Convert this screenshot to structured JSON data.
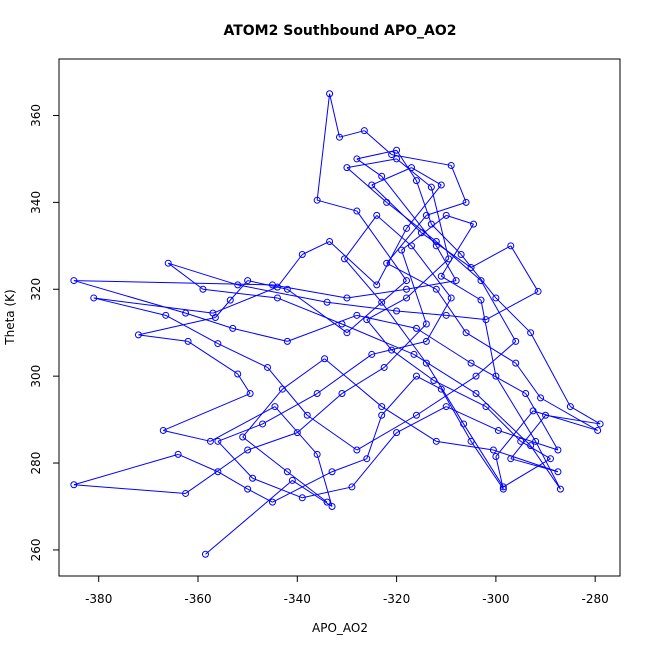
{
  "chart_data": {
    "type": "line",
    "title": "ATOM2 Southbound APO_AO2",
    "xlabel": "APO_AO2",
    "ylabel": "Theta (K)",
    "xlim": [
      -388,
      -275
    ],
    "ylim": [
      254,
      373
    ],
    "x_ticks": [
      -380,
      -360,
      -340,
      -320,
      -300,
      -280
    ],
    "y_ticks": [
      260,
      280,
      300,
      320,
      340,
      360
    ],
    "grid": false,
    "series_color": "#0000ff",
    "series": [
      {
        "marker": "open-circle",
        "points": [
          [
            -358.5,
            259.0
          ],
          [
            -341.0,
            276.0
          ],
          [
            -333.0,
            270.0
          ],
          [
            -336.0,
            282.0
          ],
          [
            -344.5,
            293.0
          ],
          [
            -357.5,
            285.0
          ],
          [
            -367.0,
            287.5
          ],
          [
            -349.5,
            296.0
          ],
          [
            -352.0,
            300.5
          ],
          [
            -362.0,
            308.0
          ],
          [
            -372.0,
            309.5
          ],
          [
            -356.5,
            313.5
          ],
          [
            -353.5,
            317.5
          ],
          [
            -350.0,
            322.0
          ],
          [
            -342.0,
            320.0
          ],
          [
            -330.0,
            310.0
          ],
          [
            -318.0,
            322.0
          ],
          [
            -328.0,
            338.0
          ],
          [
            -336.0,
            340.5
          ],
          [
            -333.5,
            365.0
          ],
          [
            -331.5,
            355.0
          ],
          [
            -326.5,
            356.5
          ],
          [
            -321.0,
            351.0
          ],
          [
            -309.0,
            348.5
          ],
          [
            -306.0,
            340.0
          ],
          [
            -314.0,
            337.0
          ],
          [
            -322.0,
            326.0
          ],
          [
            -312.0,
            320.0
          ],
          [
            -306.0,
            310.0
          ],
          [
            -296.0,
            303.0
          ],
          [
            -291.0,
            295.0
          ],
          [
            -279.5,
            287.5
          ],
          [
            -292.5,
            292.0
          ],
          [
            -300.0,
            281.5
          ],
          [
            -298.5,
            274.0
          ],
          [
            -305.0,
            285.0
          ],
          [
            -311.0,
            297.0
          ],
          [
            -316.0,
            300.0
          ],
          [
            -323.0,
            291.0
          ],
          [
            -326.0,
            281.0
          ],
          [
            -333.0,
            278.0
          ],
          [
            -345.0,
            271.0
          ],
          [
            -350.0,
            274.0
          ],
          [
            -356.0,
            278.0
          ],
          [
            -364.0,
            282.0
          ],
          [
            -385.0,
            275.0
          ],
          [
            -362.5,
            273.0
          ],
          [
            -350.0,
            283.0
          ],
          [
            -340.0,
            287.0
          ],
          [
            -331.0,
            296.0
          ],
          [
            -322.5,
            302.0
          ],
          [
            -314.0,
            312.0
          ],
          [
            -319.0,
            329.0
          ],
          [
            -310.0,
            337.0
          ],
          [
            -304.5,
            335.0
          ],
          [
            -311.0,
            323.0
          ],
          [
            -303.0,
            317.5
          ],
          [
            -300.0,
            300.0
          ],
          [
            -292.0,
            285.0
          ],
          [
            -287.0,
            274.0
          ],
          [
            -293.0,
            284.0
          ],
          [
            -304.0,
            296.0
          ],
          [
            -316.5,
            305.0
          ],
          [
            -331.0,
            312.0
          ],
          [
            -344.0,
            318.0
          ],
          [
            -359.0,
            320.0
          ],
          [
            -366.0,
            326.0
          ],
          [
            -352.0,
            321.0
          ],
          [
            -334.0,
            317.0
          ],
          [
            -320.0,
            315.0
          ],
          [
            -310.0,
            314.0
          ],
          [
            -302.0,
            313.0
          ],
          [
            -291.5,
            319.5
          ],
          [
            -297.0,
            330.0
          ],
          [
            -305.0,
            325.0
          ],
          [
            -315.0,
            333.0
          ],
          [
            -325.0,
            344.0
          ],
          [
            -317.0,
            348.0
          ],
          [
            -311.0,
            344.0
          ],
          [
            -318.0,
            334.0
          ],
          [
            -324.0,
            321.0
          ],
          [
            -333.5,
            331.0
          ],
          [
            -339.0,
            328.0
          ],
          [
            -344.0,
            320.5
          ],
          [
            -357.0,
            314.5
          ],
          [
            -381.0,
            318.0
          ],
          [
            -366.5,
            314.0
          ],
          [
            -356.0,
            307.5
          ],
          [
            -346.0,
            302.0
          ],
          [
            -338.0,
            291.0
          ],
          [
            -328.0,
            283.0
          ],
          [
            -316.0,
            291.0
          ],
          [
            -304.0,
            300.0
          ],
          [
            -296.0,
            308.0
          ],
          [
            -303.0,
            322.0
          ],
          [
            -312.0,
            331.0
          ],
          [
            -322.0,
            340.0
          ],
          [
            -330.0,
            348.0
          ],
          [
            -320.0,
            350.0
          ],
          [
            -313.0,
            343.5
          ],
          [
            -309.5,
            327.0
          ],
          [
            -318.0,
            318.0
          ],
          [
            -326.0,
            313.0
          ],
          [
            -321.0,
            306.0
          ],
          [
            -312.5,
            299.0
          ],
          [
            -302.0,
            293.0
          ],
          [
            -295.0,
            285.0
          ],
          [
            -289.0,
            281.0
          ],
          [
            -298.5,
            274.5
          ],
          [
            -306.5,
            289.0
          ],
          [
            -314.0,
            303.0
          ],
          [
            -323.0,
            317.0
          ],
          [
            -330.5,
            327.0
          ],
          [
            -324.0,
            337.0
          ],
          [
            -317.0,
            330.0
          ],
          [
            -309.0,
            318.0
          ],
          [
            -314.0,
            308.0
          ],
          [
            -325.0,
            305.0
          ],
          [
            -336.0,
            296.0
          ],
          [
            -347.0,
            289.0
          ],
          [
            -356.0,
            285.0
          ],
          [
            -349.0,
            276.5
          ],
          [
            -339.0,
            272.0
          ],
          [
            -329.0,
            274.5
          ],
          [
            -320.0,
            287.0
          ],
          [
            -310.0,
            293.0
          ],
          [
            -299.5,
            287.5
          ],
          [
            -287.5,
            283.0
          ],
          [
            -294.0,
            296.0
          ],
          [
            -305.0,
            303.0
          ],
          [
            -316.0,
            311.0
          ],
          [
            -328.0,
            314.0
          ],
          [
            -342.0,
            308.0
          ],
          [
            -353.0,
            311.0
          ],
          [
            -362.5,
            314.5
          ],
          [
            -385.0,
            322.0
          ],
          [
            -345.0,
            321.0
          ],
          [
            -330.0,
            318.0
          ],
          [
            -318.0,
            320.0
          ],
          [
            -308.0,
            322.0
          ],
          [
            -312.0,
            330.0
          ],
          [
            -323.0,
            346.0
          ],
          [
            -328.0,
            350.0
          ],
          [
            -320.0,
            352.0
          ],
          [
            -316.0,
            345.0
          ],
          [
            -313.0,
            335.0
          ],
          [
            -307.0,
            328.0
          ],
          [
            -300.0,
            318.0
          ],
          [
            -293.0,
            310.0
          ],
          [
            -285.0,
            293.0
          ],
          [
            -279.0,
            289.0
          ],
          [
            -290.0,
            291.0
          ],
          [
            -297.0,
            281.0
          ],
          [
            -287.5,
            278.0
          ],
          [
            -300.5,
            283.0
          ],
          [
            -312.0,
            285.0
          ],
          [
            -323.0,
            293.0
          ],
          [
            -334.5,
            304.0
          ],
          [
            -343.0,
            297.0
          ],
          [
            -351.0,
            286.0
          ],
          [
            -342.0,
            278.0
          ],
          [
            -334.0,
            271.0
          ]
        ]
      }
    ]
  }
}
